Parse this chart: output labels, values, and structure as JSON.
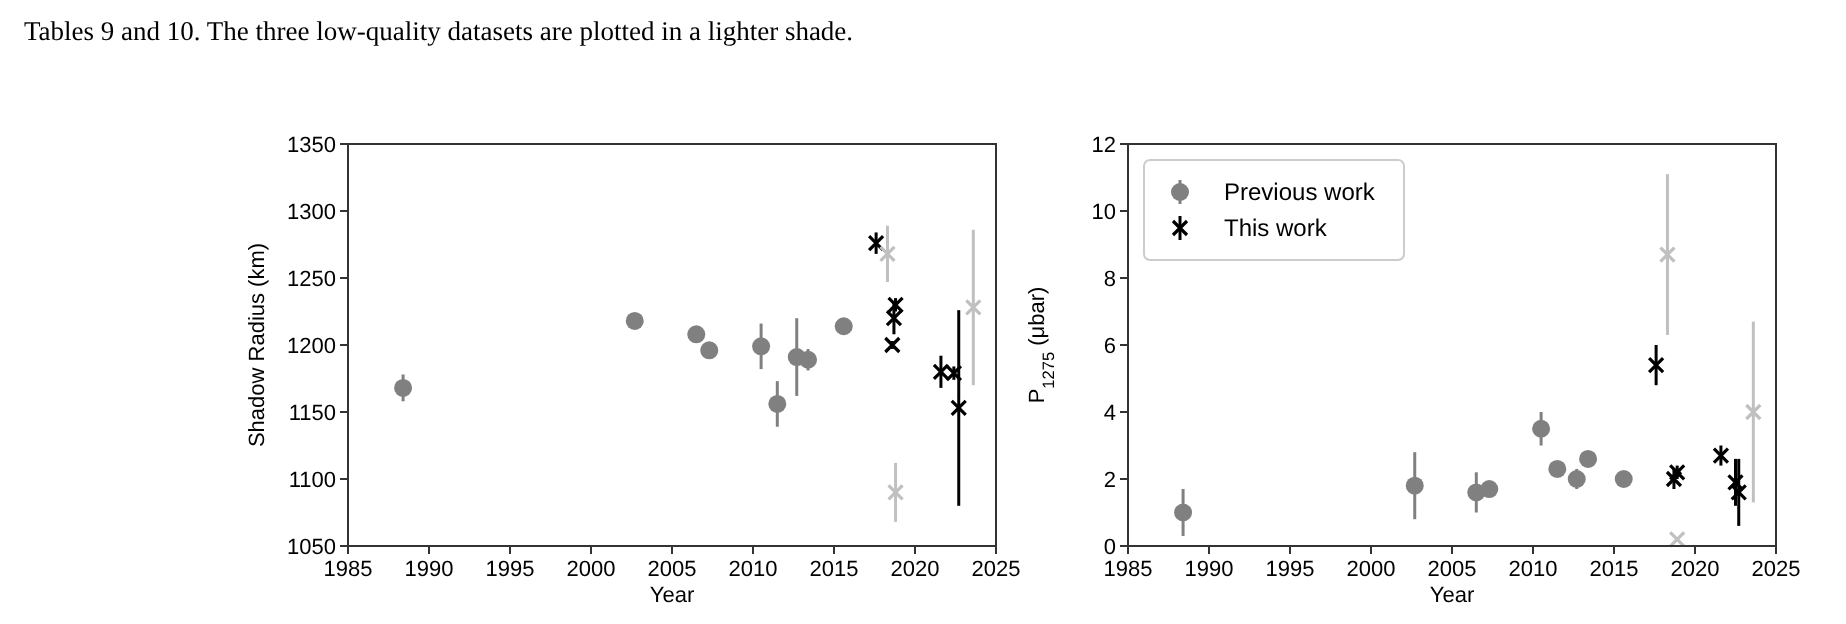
{
  "chart_data": [
    {
      "type": "scatter",
      "annotations": [
        "Tables 9 and 10. The three low-quality datasets are plotted in a lighter shade."
      ],
      "xlabel": "Year",
      "ylabel": "Shadow Radius (km)",
      "xlim": [
        1985,
        2025
      ],
      "xticks": [
        1985,
        1990,
        1995,
        2000,
        2005,
        2010,
        2015,
        2020,
        2025
      ],
      "ylim": [
        1050,
        1350
      ],
      "yticks": [
        1050,
        1100,
        1150,
        1200,
        1250,
        1300,
        1350
      ],
      "legend": false,
      "series": [
        {
          "color": "#808080",
          "marker": "circle",
          "x": [
            1988.4,
            2002.7,
            2006.5,
            2007.3,
            2010.5,
            2011.5,
            2012.7,
            2013.4,
            2015.6
          ],
          "values": [
            1168,
            1218,
            1208,
            1196,
            1199,
            1156,
            1191,
            1189,
            1214
          ],
          "errors": [
            10,
            4,
            null,
            null,
            17,
            17,
            29,
            8,
            null
          ]
        },
        {
          "color": "#000000",
          "marker": "cross",
          "x": [
            2017.6,
            2018.8,
            2018.7,
            2018.6,
            2021.6,
            2022.4,
            2022.7
          ],
          "values": [
            1276,
            1230,
            1220,
            1200,
            1180,
            1179,
            1153
          ],
          "errors": [
            8,
            5,
            12,
            3,
            12,
            5,
            73
          ]
        },
        {
          "color": "#c0c0c0",
          "marker": "cross",
          "x": [
            2018.3,
            2018.8,
            2023.6
          ],
          "values": [
            1268,
            1090,
            1228
          ],
          "errors": [
            21,
            22,
            58
          ]
        }
      ]
    },
    {
      "type": "scatter",
      "xlabel": "Year",
      "ylabel": "P$_{1275}$  (μbar)",
      "xlim": [
        1985,
        2025
      ],
      "xticks": [
        1985,
        1990,
        1995,
        2000,
        2005,
        2010,
        2015,
        2020,
        2025
      ],
      "ylim": [
        0,
        12
      ],
      "yticks": [
        0,
        2,
        4,
        6,
        8,
        10,
        12
      ],
      "legend": "top left",
      "series": [
        {
          "name": "Previous work",
          "color": "#808080",
          "marker": "circle",
          "x": [
            1988.4,
            2002.7,
            2006.5,
            2007.3,
            2010.5,
            2011.5,
            2012.7,
            2013.4,
            2015.6
          ],
          "values": [
            1.0,
            1.8,
            1.6,
            1.7,
            3.5,
            2.3,
            2.0,
            2.6,
            2.0
          ],
          "errors": [
            0.7,
            1.0,
            0.6,
            null,
            0.5,
            null,
            0.3,
            null,
            null
          ]
        },
        {
          "name": "This work",
          "color": "#000000",
          "marker": "cross",
          "x": [
            2017.6,
            2018.7,
            2018.9,
            2021.6,
            2022.5,
            2022.7
          ],
          "values": [
            5.4,
            2.0,
            2.2,
            2.7,
            1.9,
            1.6
          ],
          "errors": [
            0.6,
            0.3,
            0.2,
            0.3,
            0.7,
            1.0
          ]
        },
        {
          "color": "#c0c0c0",
          "marker": "cross",
          "x": [
            2018.3,
            2018.9,
            2023.6
          ],
          "values": [
            8.7,
            0.2,
            4.0
          ],
          "errors": [
            2.4,
            null,
            2.7
          ]
        }
      ]
    }
  ]
}
